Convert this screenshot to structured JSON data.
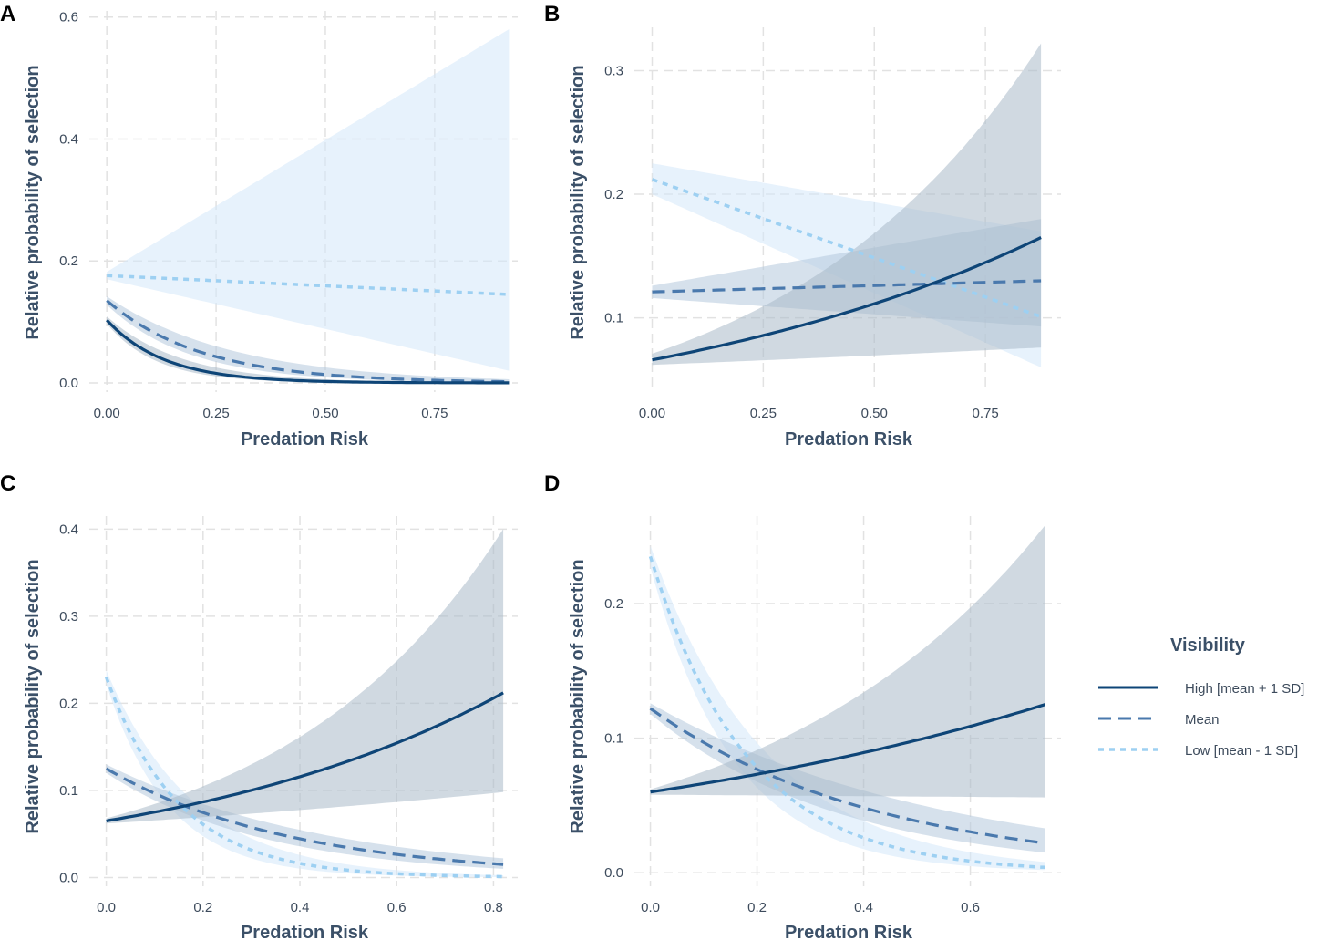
{
  "colors": {
    "high": "#0e4577",
    "mean": "#4a79ad",
    "low": "#9dd0f2",
    "ribbon_high": "#a9b9c9",
    "ribbon_mean": "#b5c8dc",
    "ribbon_low": "#d4e7f9"
  },
  "legend": {
    "title": "Visibility",
    "items": [
      {
        "key": "high",
        "label": "High [mean + 1 SD]",
        "style": "solid"
      },
      {
        "key": "mean",
        "label": "Mean",
        "style": "dashed"
      },
      {
        "key": "low",
        "label": "Low [mean - 1 SD]",
        "style": "dotted"
      }
    ]
  },
  "chart_data": [
    {
      "panel": "A",
      "type": "line",
      "xlabel": "Predation Risk",
      "ylabel": "Relative probability of selection",
      "xlim": [
        -0.04,
        0.94
      ],
      "ylim": [
        -0.015,
        0.61
      ],
      "xticks": [
        0,
        0.25,
        0.5,
        0.75
      ],
      "xtick_labels": [
        "0.00",
        "0.25",
        "0.50",
        "0.75"
      ],
      "yticks": [
        0,
        0.2,
        0.4,
        0.6
      ],
      "ytick_labels": [
        "0.0",
        "0.2",
        "0.4",
        "0.6"
      ],
      "series": [
        {
          "key": "low",
          "name": "Low [mean - 1 SD]",
          "x": [
            0,
            0.92
          ],
          "y": [
            0.176,
            0.145
          ],
          "lower": [
            0.17,
            0.02
          ],
          "upper": [
            0.182,
            0.58
          ]
        },
        {
          "key": "mean",
          "name": "Mean",
          "x": [
            0,
            0.92
          ],
          "y": [
            0.135,
            0.002
          ],
          "lower": [
            0.128,
            0.001
          ],
          "upper": [
            0.142,
            0.006
          ]
        },
        {
          "key": "high",
          "name": "High [mean + 1 SD]",
          "x": [
            0,
            0.92
          ],
          "y": [
            0.103,
            0.0001
          ],
          "lower": [
            0.097,
            3e-05
          ],
          "upper": [
            0.109,
            0.0005
          ]
        }
      ]
    },
    {
      "panel": "B",
      "type": "line",
      "xlabel": "Predation Risk",
      "ylabel": "Relative probability of selection",
      "xlim": [
        -0.04,
        0.92
      ],
      "ylim": [
        0.04,
        0.335
      ],
      "xticks": [
        0,
        0.25,
        0.5,
        0.75
      ],
      "xtick_labels": [
        "0.00",
        "0.25",
        "0.50",
        "0.75"
      ],
      "yticks": [
        0.1,
        0.2,
        0.3
      ],
      "ytick_labels": [
        "0.1",
        "0.2",
        "0.3"
      ],
      "series": [
        {
          "key": "low",
          "name": "Low [mean - 1 SD]",
          "x": [
            0,
            0.875
          ],
          "y": [
            0.212,
            0.101
          ],
          "lower": [
            0.2,
            0.06
          ],
          "upper": [
            0.225,
            0.17
          ]
        },
        {
          "key": "mean",
          "name": "Mean",
          "x": [
            0,
            0.875
          ],
          "y": [
            0.121,
            0.13
          ],
          "lower": [
            0.116,
            0.093
          ],
          "upper": [
            0.126,
            0.18
          ]
        },
        {
          "key": "high",
          "name": "High [mean + 1 SD]",
          "x": [
            0,
            0.875
          ],
          "y": [
            0.066,
            0.165
          ],
          "lower": [
            0.062,
            0.076
          ],
          "upper": [
            0.071,
            0.322
          ]
        }
      ]
    },
    {
      "panel": "C",
      "type": "line",
      "xlabel": "Predation Risk",
      "ylabel": "Relative probability of selection",
      "xlim": [
        -0.035,
        0.85
      ],
      "ylim": [
        -0.01,
        0.415
      ],
      "xticks": [
        0,
        0.2,
        0.4,
        0.6,
        0.8
      ],
      "xtick_labels": [
        "0.0",
        "0.2",
        "0.4",
        "0.6",
        "0.8"
      ],
      "yticks": [
        0,
        0.1,
        0.2,
        0.3,
        0.4
      ],
      "ytick_labels": [
        "0.0",
        "0.1",
        "0.2",
        "0.3",
        "0.4"
      ],
      "series": [
        {
          "key": "low",
          "name": "Low [mean - 1 SD]",
          "x": [
            0,
            0.82
          ],
          "y": [
            0.23,
            0.001
          ],
          "lower": [
            0.222,
            0.0004
          ],
          "upper": [
            0.238,
            0.0025
          ]
        },
        {
          "key": "mean",
          "name": "Mean",
          "x": [
            0,
            0.82
          ],
          "y": [
            0.125,
            0.015
          ],
          "lower": [
            0.12,
            0.01
          ],
          "upper": [
            0.13,
            0.022
          ]
        },
        {
          "key": "high",
          "name": "High [mean + 1 SD]",
          "x": [
            0,
            0.82
          ],
          "y": [
            0.065,
            0.212
          ],
          "lower": [
            0.062,
            0.098
          ],
          "upper": [
            0.068,
            0.4
          ]
        }
      ]
    },
    {
      "panel": "D",
      "type": "line",
      "xlabel": "Predation Risk",
      "ylabel": "Relative probability of selection",
      "xlim": [
        -0.03,
        0.77
      ],
      "ylim": [
        -0.01,
        0.265
      ],
      "xticks": [
        0,
        0.2,
        0.4,
        0.6
      ],
      "xtick_labels": [
        "0.0",
        "0.2",
        "0.4",
        "0.6"
      ],
      "yticks": [
        0,
        0.1,
        0.2
      ],
      "ytick_labels": [
        "0.0",
        "0.1",
        "0.2"
      ],
      "series": [
        {
          "key": "low",
          "name": "Low [mean - 1 SD]",
          "x": [
            0,
            0.74
          ],
          "y": [
            0.235,
            0.004
          ],
          "lower": [
            0.227,
            0.002
          ],
          "upper": [
            0.243,
            0.008
          ]
        },
        {
          "key": "mean",
          "name": "Mean",
          "x": [
            0,
            0.74
          ],
          "y": [
            0.122,
            0.022
          ],
          "lower": [
            0.118,
            0.015
          ],
          "upper": [
            0.126,
            0.033
          ]
        },
        {
          "key": "high",
          "name": "High [mean + 1 SD]",
          "x": [
            0,
            0.74
          ],
          "y": [
            0.06,
            0.125
          ],
          "lower": [
            0.058,
            0.056
          ],
          "upper": [
            0.062,
            0.258
          ]
        }
      ]
    }
  ]
}
